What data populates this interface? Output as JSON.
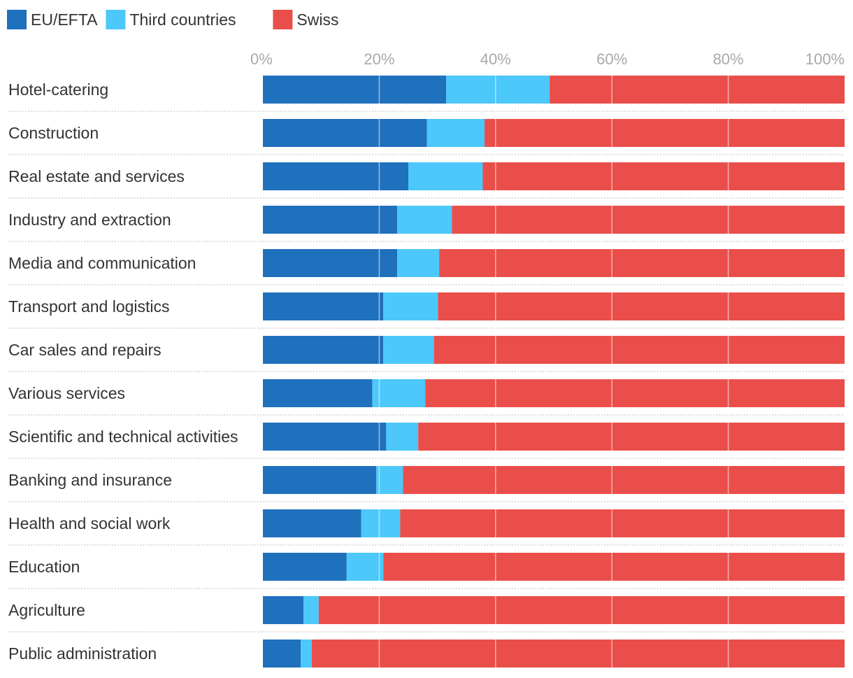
{
  "chart_data": {
    "type": "bar",
    "orientation": "horizontal",
    "stacked": true,
    "title": "",
    "xlabel": "",
    "ylabel": "",
    "xlim": [
      0,
      100
    ],
    "x_ticks": [
      "0%",
      "20%",
      "40%",
      "60%",
      "80%",
      "100%"
    ],
    "grid": true,
    "legend_position": "top-left",
    "categories": [
      "Hotel-catering",
      "Construction",
      "Real estate and services",
      "Industry and extraction",
      "Media and communication",
      "Transport and logistics",
      "Car sales and repairs",
      "Various services",
      "Scientific and technical activities",
      "Banking and insurance",
      "Health and social work",
      "Education",
      "Agriculture",
      "Public administration"
    ],
    "series": [
      {
        "name": "EU/EFTA",
        "color": "#1f70bd",
        "values": [
          31.5,
          28.2,
          25.0,
          23.1,
          23.1,
          20.7,
          20.7,
          18.8,
          21.2,
          19.5,
          16.9,
          14.4,
          7.0,
          6.5
        ]
      },
      {
        "name": "Third countries",
        "color": "#4cc8fa",
        "values": [
          17.8,
          9.9,
          12.8,
          9.4,
          7.2,
          9.4,
          8.7,
          9.1,
          5.5,
          4.6,
          6.7,
          6.3,
          2.6,
          1.9
        ]
      },
      {
        "name": "Swiss",
        "color": "#ea4e4a",
        "values": [
          50.7,
          61.9,
          62.2,
          67.5,
          69.7,
          69.9,
          70.6,
          72.1,
          73.3,
          75.9,
          76.4,
          79.3,
          90.4,
          91.6
        ]
      }
    ]
  }
}
